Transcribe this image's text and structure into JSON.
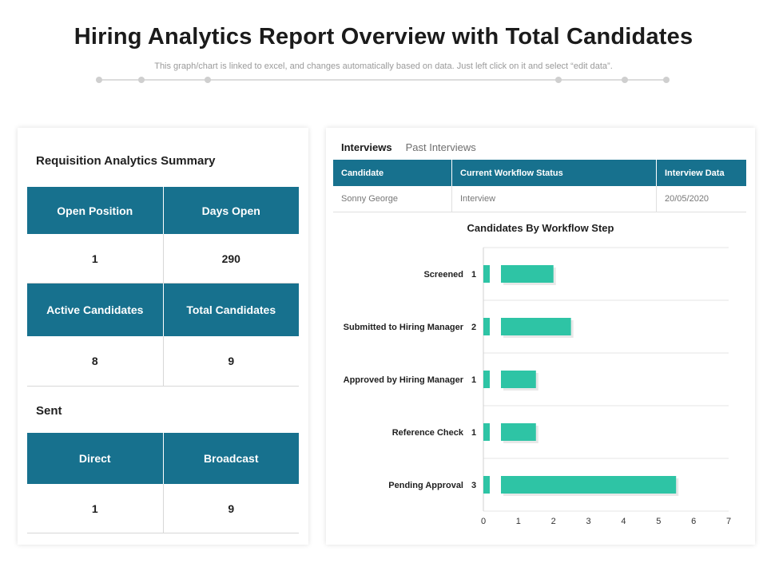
{
  "header": {
    "title": "Hiring Analytics Report Overview with Total Candidates",
    "subtitle": "This graph/chart is linked to excel, and changes automatically based on data. Just left click on it and select “edit data”."
  },
  "summary": {
    "title": "Requisition Analytics Summary",
    "open_position_label": "Open Position",
    "days_open_label": "Days Open",
    "open_position_value": "1",
    "days_open_value": "290",
    "active_candidates_label": "Active Candidates",
    "total_candidates_label": "Total Candidates",
    "active_candidates_value": "8",
    "total_candidates_value": "9"
  },
  "sent": {
    "title": "Sent",
    "direct_label": "Direct",
    "broadcast_label": "Broadcast",
    "direct_value": "1",
    "broadcast_value": "9"
  },
  "interviews": {
    "tab_active": "Interviews",
    "tab_inactive": "Past Interviews",
    "columns": [
      "Candidate",
      "Current  Workflow Status",
      "Interview Data"
    ],
    "rows": [
      [
        "Sonny George",
        "Interview",
        "20/05/2020"
      ]
    ]
  },
  "colors": {
    "header_teal": "#17718e",
    "bar_teal": "#2ec4a5"
  },
  "chart_data": {
    "type": "bar",
    "orientation": "horizontal",
    "title": "Candidates By Workflow Step",
    "categories": [
      "Screened",
      "Submitted to Hiring Manager",
      "Approved by Hiring Manager",
      "Reference Check",
      "Pending Approval"
    ],
    "values": [
      1,
      2,
      1,
      1,
      3
    ],
    "bar_lengths": [
      2,
      2.5,
      1.5,
      1.5,
      5.5
    ],
    "xlim": [
      0,
      7
    ],
    "xticks": [
      0,
      1,
      2,
      3,
      4,
      5,
      6,
      7
    ],
    "xlabel": "",
    "ylabel": "",
    "grid": true
  }
}
